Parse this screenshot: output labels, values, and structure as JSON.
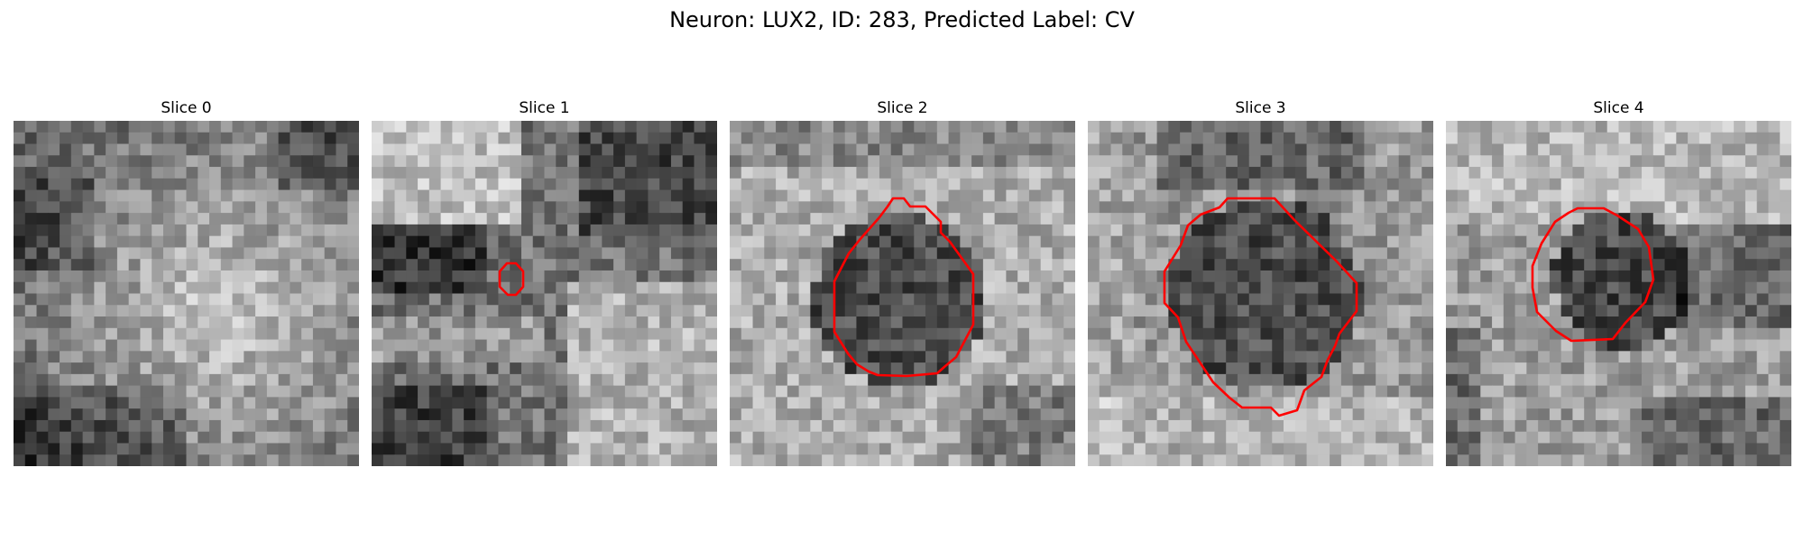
{
  "figure": {
    "title": "Neuron: LUX2, ID: 283, Predicted Label: CV"
  },
  "colors": {
    "background": "#ffffff",
    "contour": "#ff0000",
    "colormap": "gray"
  },
  "panels": [
    {
      "title": "Slice 0",
      "has_contour": false,
      "contour_icon": "none"
    },
    {
      "title": "Slice 1",
      "has_contour": true,
      "contour_icon": "red-contour"
    },
    {
      "title": "Slice 2",
      "has_contour": true,
      "contour_icon": "red-contour"
    },
    {
      "title": "Slice 3",
      "has_contour": true,
      "contour_icon": "red-contour"
    },
    {
      "title": "Slice 4",
      "has_contour": true,
      "contour_icon": "red-contour"
    }
  ]
}
